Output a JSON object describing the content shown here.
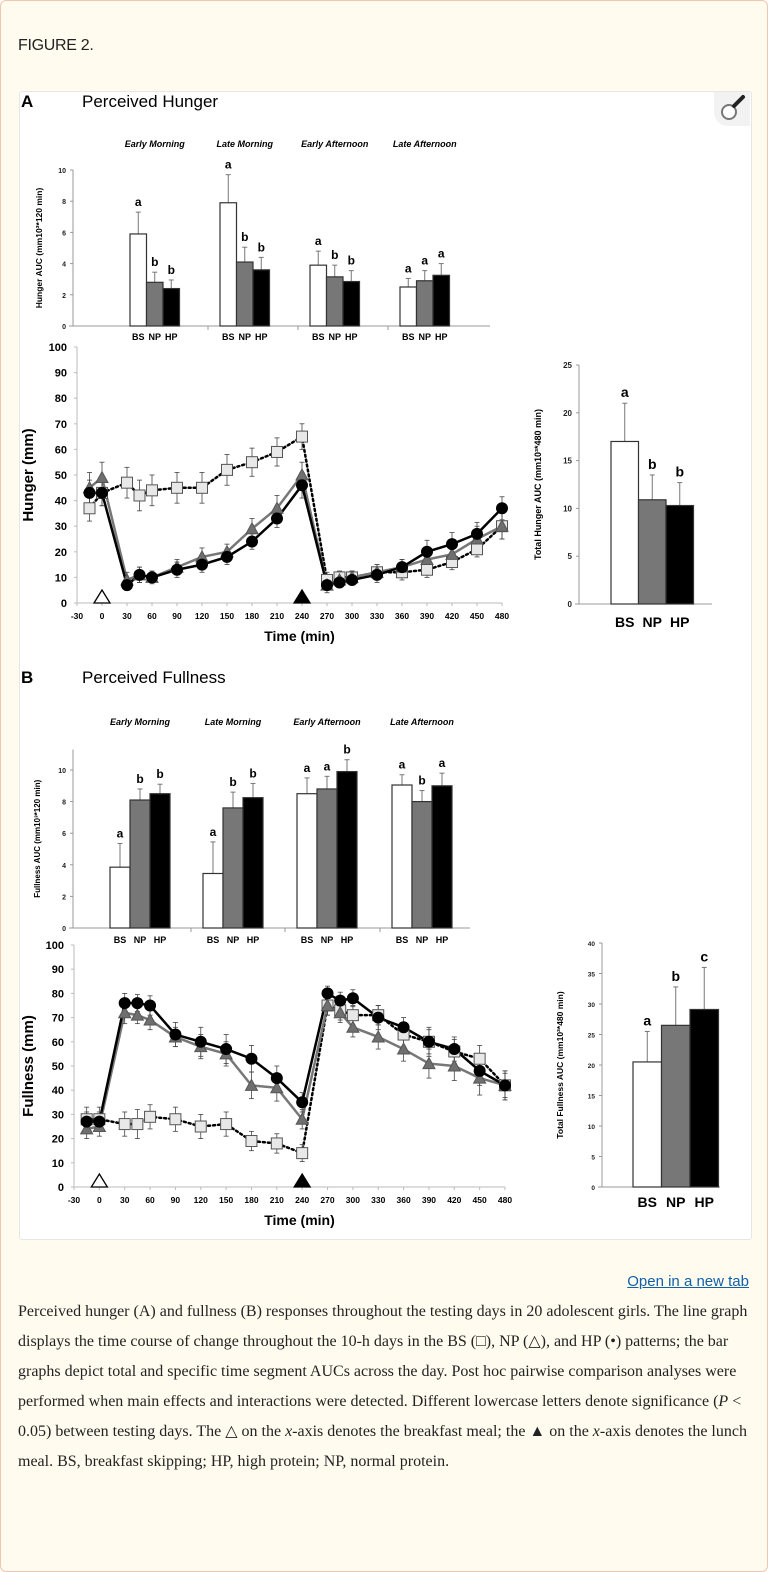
{
  "figure_label": "FIGURE 2.",
  "open_link": "Open in a new tab",
  "zoom_icon": "magnifier-icon",
  "caption": {
    "p1": "Perceived hunger (A) and fullness (B) responses throughout the testing days in 20 adolescent girls. The line graph displays the time course of change throughout the 10-h days in the BS (□), NP (△), and HP (•) patterns; the bar graphs depict total and specific time segment AUCs across the day. Post hoc pairwise comparison analyses were performed when main effects and interactions were detected. Different lowercase letters denote significance (",
    "p_italic": "P",
    "p2": " < 0.05) between testing days. The △ on the ",
    "x1": "x",
    "p3": "-axis denotes the breakfast meal; the ▲ on the ",
    "x2": "x",
    "p4": "-axis denotes the lunch meal. BS, breakfast skipping; HP, high protein; NP, normal protein."
  },
  "panels": {
    "A": {
      "letter": "A",
      "title": "Perceived Hunger"
    },
    "B": {
      "letter": "B",
      "title": "Perceived Fullness"
    }
  },
  "colors": {
    "BS": "#ffffff",
    "NP": "#777777",
    "HP": "#000000",
    "outline": "#333333"
  },
  "chart_data": [
    {
      "id": "hunger_segments",
      "type": "bar",
      "ylabel": "Hunger  AUC (mm10³*120 min)",
      "ylim": [
        0,
        10
      ],
      "yticks": [
        0,
        2,
        4,
        6,
        8,
        10
      ],
      "groups": [
        "Early Morning",
        "Late Morning",
        "Early Afternoon",
        "Late Afternoon"
      ],
      "categories": [
        "BS",
        "NP",
        "HP"
      ],
      "values": [
        [
          5.9,
          2.8,
          2.4
        ],
        [
          7.9,
          4.1,
          3.6
        ],
        [
          3.9,
          3.15,
          2.85
        ],
        [
          2.5,
          2.9,
          3.25
        ]
      ],
      "errors": [
        [
          1.4,
          0.65,
          0.55
        ],
        [
          1.8,
          0.95,
          0.8
        ],
        [
          0.9,
          0.75,
          0.7
        ],
        [
          0.55,
          0.65,
          0.75
        ]
      ],
      "letters": [
        [
          "a",
          "b",
          "b"
        ],
        [
          "a",
          "b",
          "b"
        ],
        [
          "a",
          "b",
          "b"
        ],
        [
          "a",
          "a",
          "a"
        ]
      ]
    },
    {
      "id": "hunger_timecourse",
      "type": "line",
      "ylabel": "Hunger (mm)",
      "xlabel": "Time (min)",
      "ylim": [
        0,
        100
      ],
      "xlim": [
        -30,
        480
      ],
      "yticks": [
        0,
        10,
        20,
        30,
        40,
        50,
        60,
        70,
        80,
        90,
        100
      ],
      "xticks": [
        -30,
        0,
        30,
        60,
        90,
        120,
        150,
        180,
        210,
        240,
        270,
        300,
        330,
        360,
        390,
        420,
        450,
        480
      ],
      "meal_markers": [
        {
          "x": 0,
          "meal": "breakfast",
          "filled": false
        },
        {
          "x": 240,
          "meal": "lunch",
          "filled": true
        }
      ],
      "x": [
        -15,
        0,
        30,
        45,
        60,
        90,
        120,
        150,
        180,
        210,
        240,
        270,
        285,
        300,
        330,
        360,
        390,
        420,
        450,
        480
      ],
      "series": [
        {
          "name": "BS",
          "marker": "square",
          "line": "dotted",
          "values": [
            37,
            43,
            47,
            42,
            44,
            45,
            45,
            52,
            55,
            59,
            65,
            9,
            10,
            10,
            12,
            12,
            13,
            16,
            21,
            30
          ],
          "errors": [
            5,
            5,
            6,
            6,
            6,
            6,
            6,
            6,
            5.5,
            5.5,
            5,
            3,
            2.5,
            2.5,
            3,
            3,
            3,
            3,
            3,
            5
          ]
        },
        {
          "name": "NP",
          "marker": "triangle",
          "line": "solid-gray",
          "values": [
            45,
            49,
            9,
            11,
            10,
            14,
            18,
            20,
            29,
            37,
            50,
            7,
            9,
            10,
            12,
            14,
            17,
            19,
            25,
            30
          ],
          "errors": [
            6,
            6,
            3,
            3,
            2.5,
            3,
            3.5,
            3,
            4,
            5,
            5,
            3,
            2.5,
            2.5,
            3,
            3,
            4,
            4,
            5,
            5
          ]
        },
        {
          "name": "HP",
          "marker": "circle",
          "line": "solid-black",
          "values": [
            43,
            43,
            7,
            11,
            10,
            13,
            15,
            18,
            24,
            33,
            46,
            7,
            8,
            9,
            11,
            14,
            20,
            23,
            27,
            37
          ],
          "errors": [
            5,
            5,
            2,
            3,
            2,
            3,
            3,
            3,
            3,
            3.5,
            5,
            2,
            2,
            2,
            3,
            3,
            4.5,
            4.5,
            4.5,
            4.5
          ]
        }
      ]
    },
    {
      "id": "hunger_total",
      "type": "bar",
      "ylabel": "Total Hunger  AUC (mm10³*480 min)",
      "ylim": [
        0,
        25
      ],
      "yticks": [
        0,
        5,
        10,
        15,
        20,
        25
      ],
      "categories": [
        "BS",
        "NP",
        "HP"
      ],
      "values": [
        17.0,
        10.9,
        10.3
      ],
      "errors": [
        4.0,
        2.6,
        2.4
      ],
      "letters": [
        "a",
        "b",
        "b"
      ]
    },
    {
      "id": "fullness_segments",
      "type": "bar",
      "ylabel": "Fullness  AUC (mm10³*120 min)",
      "ylim": [
        0,
        11
      ],
      "yticks": [
        0,
        2,
        4,
        6,
        8,
        10
      ],
      "groups": [
        "Early Morning",
        "Late Morning",
        "Early Afternoon",
        "Late Afternoon"
      ],
      "categories": [
        "BS",
        "NP",
        "HP"
      ],
      "values": [
        [
          3.85,
          8.1,
          8.5
        ],
        [
          3.45,
          7.6,
          8.25
        ],
        [
          8.5,
          8.8,
          9.9
        ],
        [
          9.05,
          8.0,
          9.0
        ]
      ],
      "errors": [
        [
          1.5,
          0.7,
          0.6
        ],
        [
          2.0,
          1.0,
          0.9
        ],
        [
          1.0,
          0.8,
          0.75
        ],
        [
          0.65,
          0.7,
          0.8
        ]
      ],
      "letters": [
        [
          "a",
          "b",
          "b"
        ],
        [
          "a",
          "b",
          "b"
        ],
        [
          "a",
          "a",
          "b"
        ],
        [
          "a",
          "b",
          "a"
        ]
      ]
    },
    {
      "id": "fullness_timecourse",
      "type": "line",
      "ylabel": "Fullness (mm)",
      "xlabel": "Time (min)",
      "ylim": [
        0,
        100
      ],
      "xlim": [
        -30,
        480
      ],
      "yticks": [
        0,
        10,
        20,
        30,
        40,
        50,
        60,
        70,
        80,
        90,
        100
      ],
      "xticks": [
        -30,
        0,
        30,
        60,
        90,
        120,
        150,
        180,
        210,
        240,
        270,
        300,
        330,
        360,
        390,
        420,
        450,
        480
      ],
      "meal_markers": [
        {
          "x": 0,
          "meal": "breakfast",
          "filled": false
        },
        {
          "x": 240,
          "meal": "lunch",
          "filled": true
        }
      ],
      "x": [
        -15,
        0,
        30,
        45,
        60,
        90,
        120,
        150,
        180,
        210,
        240,
        270,
        285,
        300,
        330,
        360,
        390,
        420,
        450,
        480
      ],
      "series": [
        {
          "name": "BS",
          "marker": "square",
          "line": "dotted",
          "values": [
            28,
            28,
            26,
            26,
            29,
            28,
            25,
            26,
            19,
            18,
            14,
            75,
            73,
            71,
            71,
            63,
            60,
            56,
            53,
            42
          ],
          "errors": [
            5,
            5,
            5,
            6,
            5,
            5,
            5,
            5,
            4,
            4,
            3.5,
            4,
            4,
            4,
            4,
            5,
            6,
            5,
            5.5,
            6
          ]
        },
        {
          "name": "NP",
          "marker": "triangle",
          "line": "solid-gray",
          "values": [
            24,
            25,
            72,
            71,
            69,
            62,
            58,
            55,
            42,
            41,
            28,
            75,
            72,
            66,
            62,
            57,
            51,
            50,
            45,
            42
          ],
          "errors": [
            4,
            4,
            4.5,
            3.5,
            4,
            4,
            5,
            5,
            5.5,
            5.5,
            4,
            4,
            4,
            4,
            5,
            5,
            6,
            6,
            7,
            5
          ]
        },
        {
          "name": "HP",
          "marker": "circle",
          "line": "solid-black",
          "values": [
            27,
            27,
            76,
            76,
            75,
            63,
            60,
            57,
            53,
            45,
            35,
            80,
            77,
            78,
            70,
            66,
            60,
            57,
            48,
            42
          ],
          "errors": [
            4,
            4,
            4,
            3.5,
            4,
            5,
            6,
            6,
            5.5,
            5,
            4,
            3,
            3.5,
            3.5,
            5,
            4,
            5,
            5,
            6,
            6
          ]
        }
      ]
    },
    {
      "id": "fullness_total",
      "type": "bar",
      "ylabel": "Total Fullness  AUC (mm10³*480 min)",
      "ylim": [
        0,
        40
      ],
      "yticks": [
        0,
        5,
        10,
        15,
        20,
        25,
        30,
        35,
        40
      ],
      "categories": [
        "BS",
        "NP",
        "HP"
      ],
      "values": [
        20.5,
        26.5,
        29.1
      ],
      "errors": [
        5.0,
        6.3,
        6.9
      ],
      "letters": [
        "a",
        "b",
        "c"
      ]
    }
  ]
}
